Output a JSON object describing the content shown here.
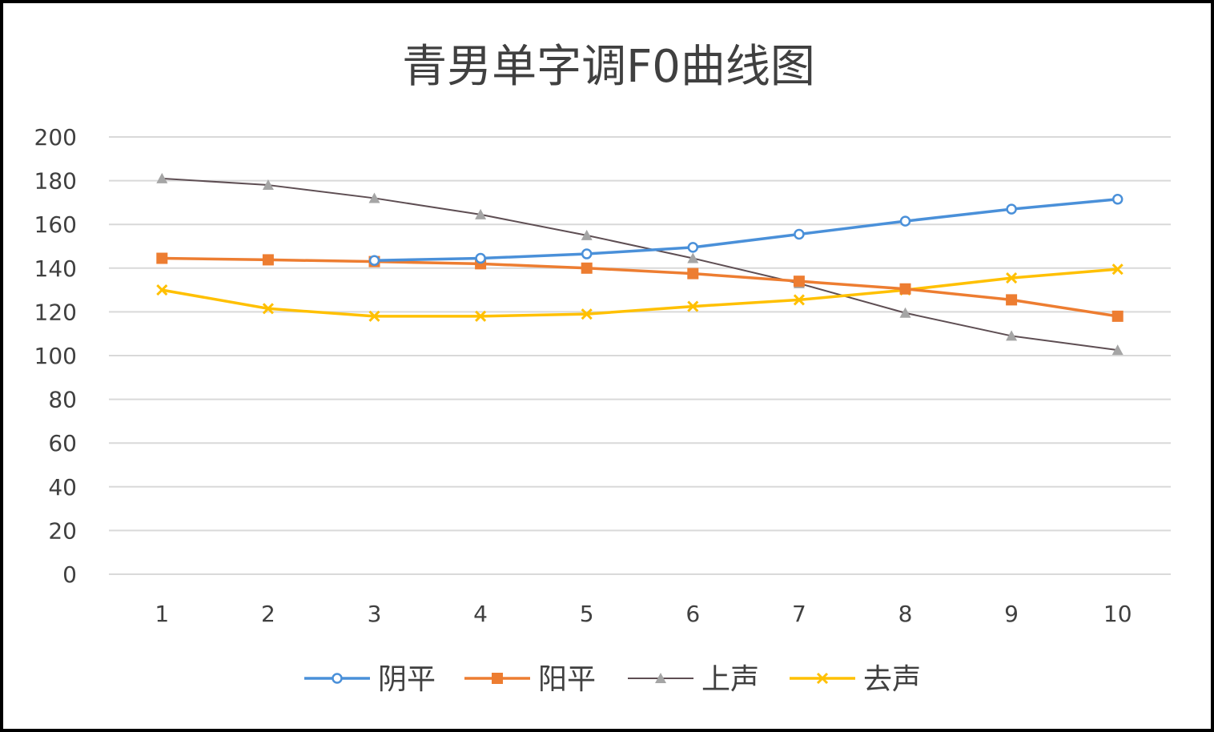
{
  "chart_data": {
    "type": "line",
    "title": "青男单字调F0曲线图",
    "xlabel": "",
    "ylabel": "",
    "x": [
      1,
      2,
      3,
      4,
      5,
      6,
      7,
      8,
      9,
      10
    ],
    "ylim": [
      0,
      200
    ],
    "yticks": [
      0,
      20,
      40,
      60,
      80,
      100,
      120,
      140,
      160,
      180,
      200
    ],
    "grid": true,
    "legend_position": "bottom",
    "series": [
      {
        "name": "阴平",
        "color": "#4A90D9",
        "marker": "circle",
        "values": [
          null,
          null,
          143.5,
          144.5,
          146.5,
          149.5,
          155.5,
          161.5,
          167,
          171.5
        ]
      },
      {
        "name": "阳平",
        "color": "#ED7D31",
        "marker": "square",
        "values": [
          144.5,
          143.8,
          143,
          142,
          140,
          137.5,
          134,
          130.5,
          125.5,
          118
        ]
      },
      {
        "name": "上声",
        "color": "#A5A5A5",
        "line_color": "#5E4E53",
        "marker": "triangle",
        "values": [
          181,
          178,
          172,
          164.5,
          155,
          144.5,
          133,
          119.5,
          109,
          102.5
        ]
      },
      {
        "name": "去声",
        "color": "#FFC000",
        "marker": "x",
        "values": [
          130,
          121.5,
          118,
          118,
          119,
          122.5,
          125.5,
          130,
          135.5,
          139.5
        ]
      }
    ]
  }
}
